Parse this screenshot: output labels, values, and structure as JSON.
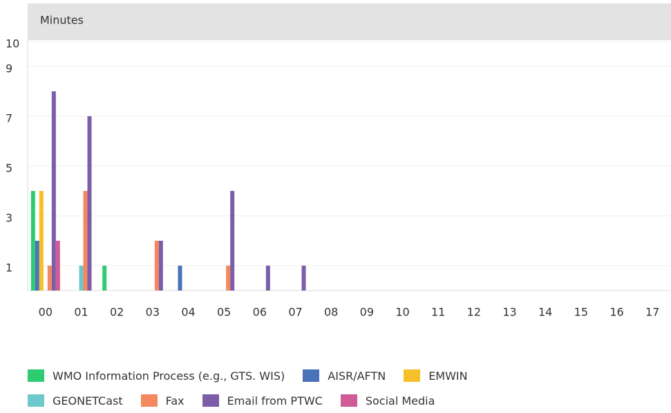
{
  "chart_data": {
    "type": "bar",
    "title": "Minutes",
    "categories": [
      "00",
      "01",
      "02",
      "03",
      "04",
      "05",
      "06",
      "07",
      "08",
      "09",
      "10",
      "11",
      "12",
      "13",
      "14",
      "15",
      "16",
      "17"
    ],
    "series": [
      {
        "name": "WMO Information Process (e.g., GTS. WIS)",
        "color": "#2ecc71",
        "values": [
          4,
          0,
          1,
          0,
          0,
          0,
          0,
          0,
          0,
          0,
          0,
          0,
          0,
          0,
          0,
          0,
          0,
          0
        ]
      },
      {
        "name": "AISR/AFTN",
        "color": "#4a72b8",
        "values": [
          2,
          0,
          0,
          0,
          1,
          0,
          0,
          0,
          0,
          0,
          0,
          0,
          0,
          0,
          0,
          0,
          0,
          0
        ]
      },
      {
        "name": "EMWIN",
        "color": "#f5c02a",
        "values": [
          4,
          0,
          0,
          0,
          0,
          0,
          0,
          0,
          0,
          0,
          0,
          0,
          0,
          0,
          0,
          0,
          0,
          0
        ]
      },
      {
        "name": "GEONETCast",
        "color": "#6ec9cc",
        "values": [
          0,
          1,
          0,
          0,
          0,
          0,
          0,
          0,
          0,
          0,
          0,
          0,
          0,
          0,
          0,
          0,
          0,
          0
        ]
      },
      {
        "name": "Fax",
        "color": "#f4895f",
        "values": [
          1,
          4,
          0,
          2,
          0,
          1,
          0,
          0,
          0,
          0,
          0,
          0,
          0,
          0,
          0,
          0,
          0,
          0
        ]
      },
      {
        "name": "Email from PTWC",
        "color": "#7b5ea7",
        "values": [
          8,
          7,
          0,
          2,
          0,
          4,
          1,
          1,
          0,
          0,
          0,
          0,
          0,
          0,
          0,
          0,
          0,
          0
        ]
      },
      {
        "name": "Social Media",
        "color": "#d15b96",
        "values": [
          2,
          0,
          0,
          0,
          0,
          0,
          0,
          0,
          0,
          0,
          0,
          0,
          0,
          0,
          0,
          0,
          0,
          0
        ]
      }
    ],
    "ylim": [
      0,
      10
    ],
    "yticks": [
      1,
      3,
      5,
      7,
      9,
      10
    ],
    "grid": true
  }
}
